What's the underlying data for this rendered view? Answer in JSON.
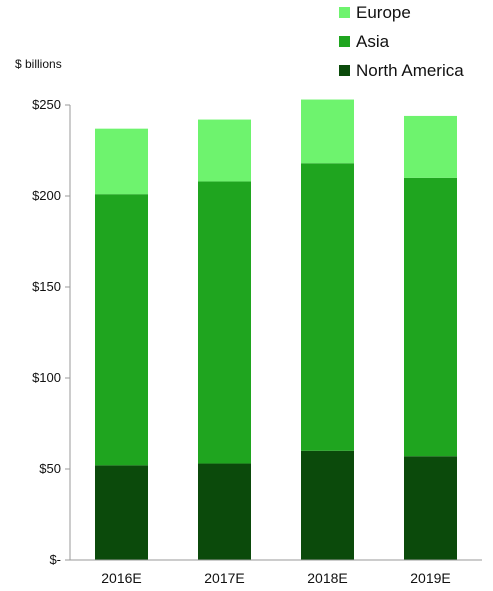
{
  "chart_data": {
    "type": "bar",
    "stacked": true,
    "ylabel": "$ billions",
    "categories": [
      "2016E",
      "2017E",
      "2018E",
      "2019E"
    ],
    "ylim": [
      0,
      250
    ],
    "yticks": [
      0,
      50,
      100,
      150,
      200,
      250
    ],
    "ytick_labels": [
      "$-",
      "$50",
      "$100",
      "$150",
      "$200",
      "$250"
    ],
    "series": [
      {
        "name": "North America",
        "color": "#0b4a0b",
        "values": [
          52,
          53,
          60,
          57
        ]
      },
      {
        "name": "Asia",
        "color": "#1fa51f",
        "values": [
          149,
          155,
          158,
          153
        ]
      },
      {
        "name": "Europe",
        "color": "#6ef36e",
        "values": [
          36,
          34,
          35,
          34
        ]
      }
    ],
    "legend": {
      "placement": "top-right",
      "order": [
        "Europe",
        "Asia",
        "North America"
      ]
    },
    "grid": false
  }
}
